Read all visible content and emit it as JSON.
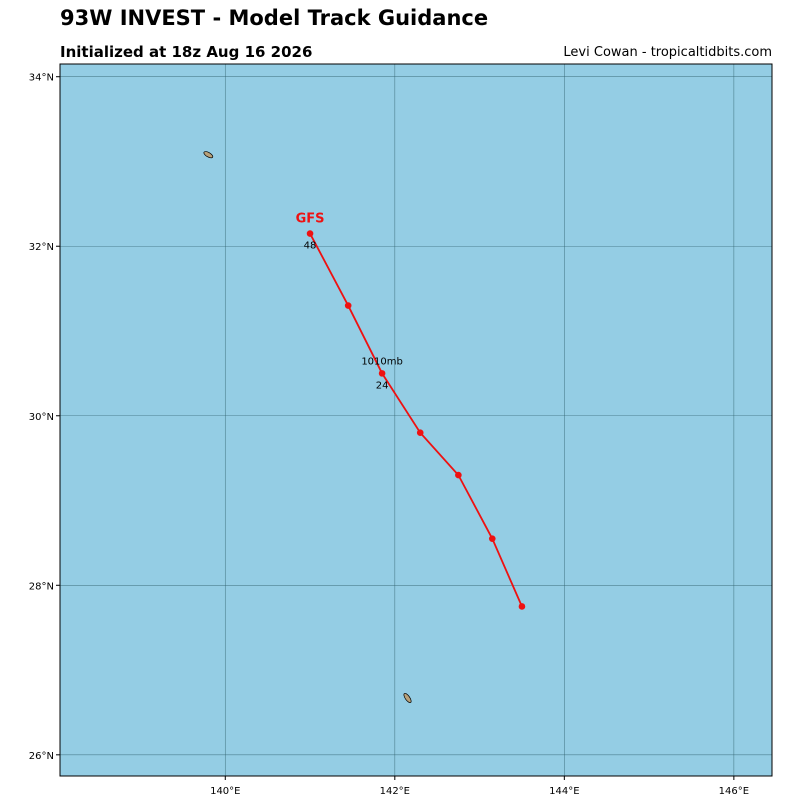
{
  "header": {
    "title": "93W INVEST - Model Track Guidance",
    "subtitle": "Initialized at 18z Aug 16 2026",
    "credit": "Levi Cowan - tropicaltidbits.com"
  },
  "colors": {
    "ocean": "#94cde4",
    "land": "#b8a17a",
    "grid": "#2f5f6b",
    "track": "#ee1111"
  },
  "map": {
    "lon_range": [
      138.05,
      146.45
    ],
    "lat_range": [
      25.75,
      34.15
    ],
    "lon_ticks": [
      {
        "value": 140,
        "label": "140°E"
      },
      {
        "value": 142,
        "label": "142°E"
      },
      {
        "value": 144,
        "label": "144°E"
      },
      {
        "value": 146,
        "label": "146°E"
      }
    ],
    "lat_ticks": [
      {
        "value": 26,
        "label": "26°N"
      },
      {
        "value": 28,
        "label": "28°N"
      },
      {
        "value": 30,
        "label": "30°N"
      },
      {
        "value": 32,
        "label": "32°N"
      },
      {
        "value": 34,
        "label": "34°N"
      }
    ],
    "islands": [
      {
        "name": "hachijo-island",
        "lon": 139.8,
        "lat": 33.08
      },
      {
        "name": "chichi-island",
        "lon": 142.15,
        "lat": 26.67
      }
    ]
  },
  "tracks": [
    {
      "model": "GFS",
      "points": [
        {
          "lon": 143.5,
          "lat": 27.75
        },
        {
          "lon": 143.15,
          "lat": 28.55
        },
        {
          "lon": 142.75,
          "lat": 29.3
        },
        {
          "lon": 142.3,
          "lat": 29.8
        },
        {
          "lon": 141.85,
          "lat": 30.5,
          "hour": "24",
          "pressure": "1010mb"
        },
        {
          "lon": 141.45,
          "lat": 31.3
        },
        {
          "lon": 141.0,
          "lat": 32.15,
          "hour": "48"
        }
      ]
    }
  ]
}
